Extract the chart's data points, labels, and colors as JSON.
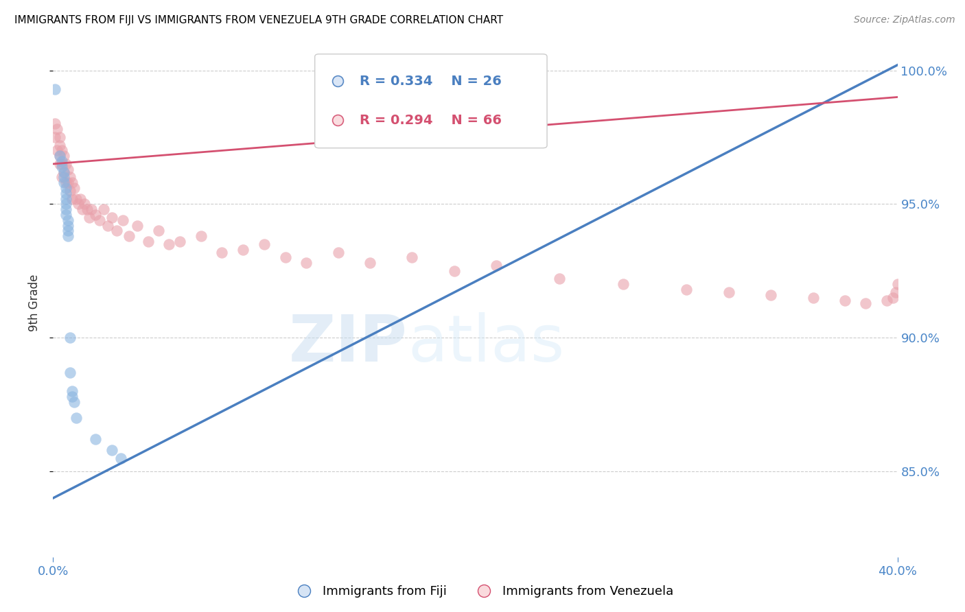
{
  "title": "IMMIGRANTS FROM FIJI VS IMMIGRANTS FROM VENEZUELA 9TH GRADE CORRELATION CHART",
  "source": "Source: ZipAtlas.com",
  "ylabel": "9th Grade",
  "fiji_label": "Immigrants from Fiji",
  "venezuela_label": "Immigrants from Venezuela",
  "fiji_R": 0.334,
  "fiji_N": 26,
  "venezuela_R": 0.294,
  "venezuela_N": 66,
  "fiji_color": "#8ab4e0",
  "venezuela_color": "#e8a0aa",
  "fiji_line_color": "#4a7fc0",
  "venezuela_line_color": "#d45070",
  "watermark_zip": "ZIP",
  "watermark_atlas": "atlas",
  "xlim": [
    0.0,
    0.4
  ],
  "ylim": [
    0.818,
    1.008
  ],
  "yticks": [
    0.85,
    0.9,
    0.95,
    1.0
  ],
  "xtick_labels_positions": [
    0.0,
    0.4
  ],
  "xtick_labels": [
    "0.0%",
    "40.0%"
  ],
  "fiji_x": [
    0.001,
    0.003,
    0.004,
    0.004,
    0.005,
    0.005,
    0.005,
    0.006,
    0.006,
    0.006,
    0.006,
    0.006,
    0.006,
    0.007,
    0.007,
    0.007,
    0.007,
    0.008,
    0.008,
    0.009,
    0.009,
    0.01,
    0.011,
    0.02,
    0.028,
    0.032
  ],
  "fiji_y": [
    0.993,
    0.968,
    0.966,
    0.964,
    0.962,
    0.96,
    0.958,
    0.956,
    0.954,
    0.952,
    0.95,
    0.948,
    0.946,
    0.944,
    0.942,
    0.94,
    0.938,
    0.9,
    0.887,
    0.88,
    0.878,
    0.876,
    0.87,
    0.862,
    0.858,
    0.855
  ],
  "venezuela_x": [
    0.001,
    0.001,
    0.002,
    0.002,
    0.003,
    0.003,
    0.003,
    0.003,
    0.004,
    0.004,
    0.004,
    0.005,
    0.005,
    0.006,
    0.006,
    0.007,
    0.007,
    0.008,
    0.008,
    0.009,
    0.009,
    0.01,
    0.011,
    0.012,
    0.013,
    0.014,
    0.015,
    0.016,
    0.017,
    0.018,
    0.02,
    0.022,
    0.024,
    0.026,
    0.028,
    0.03,
    0.033,
    0.036,
    0.04,
    0.045,
    0.05,
    0.055,
    0.06,
    0.07,
    0.08,
    0.09,
    0.1,
    0.11,
    0.12,
    0.135,
    0.15,
    0.17,
    0.19,
    0.21,
    0.24,
    0.27,
    0.3,
    0.32,
    0.34,
    0.36,
    0.375,
    0.385,
    0.395,
    0.398,
    0.399,
    0.4
  ],
  "venezuela_y": [
    0.98,
    0.975,
    0.978,
    0.97,
    0.975,
    0.972,
    0.968,
    0.965,
    0.97,
    0.965,
    0.96,
    0.968,
    0.962,
    0.965,
    0.958,
    0.963,
    0.958,
    0.96,
    0.955,
    0.958,
    0.952,
    0.956,
    0.952,
    0.95,
    0.952,
    0.948,
    0.95,
    0.948,
    0.945,
    0.948,
    0.946,
    0.944,
    0.948,
    0.942,
    0.945,
    0.94,
    0.944,
    0.938,
    0.942,
    0.936,
    0.94,
    0.935,
    0.936,
    0.938,
    0.932,
    0.933,
    0.935,
    0.93,
    0.928,
    0.932,
    0.928,
    0.93,
    0.925,
    0.927,
    0.922,
    0.92,
    0.918,
    0.917,
    0.916,
    0.915,
    0.914,
    0.913,
    0.914,
    0.915,
    0.917,
    0.92
  ],
  "fiji_line_x": [
    0.0,
    0.4
  ],
  "fiji_line_y": [
    0.84,
    1.002
  ],
  "venezuela_line_x": [
    0.0,
    0.4
  ],
  "venezuela_line_y": [
    0.965,
    0.99
  ],
  "background_color": "#ffffff",
  "grid_color": "#cccccc",
  "title_color": "#000000",
  "tick_color": "#4a86c8",
  "legend_fiji_bg": "#d6e4f5",
  "legend_venezuela_bg": "#fadadd"
}
